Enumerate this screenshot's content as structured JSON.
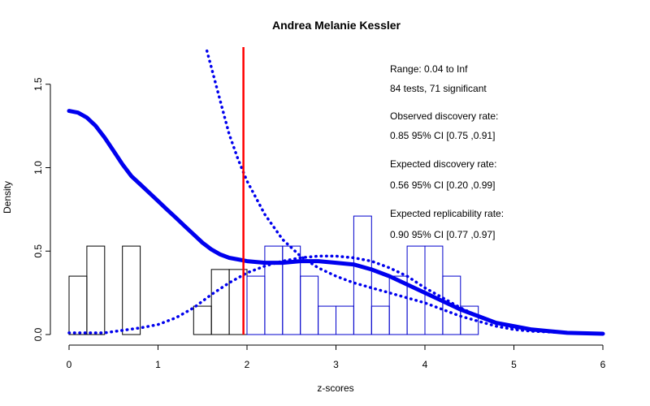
{
  "chart_data": {
    "type": "histogram",
    "title": "Andrea Melanie Kessler",
    "xlabel": "z-scores",
    "ylabel": "Density",
    "xlim": [
      0,
      6
    ],
    "ylim": [
      0,
      1.6
    ],
    "x_ticks": [
      "0",
      "1",
      "2",
      "3",
      "4",
      "5",
      "6"
    ],
    "y_ticks": [
      "0.0",
      "0.5",
      "1.0",
      "1.5"
    ],
    "grid": false,
    "bin_width": 0.2,
    "bins": [
      {
        "x0": 0.0,
        "height": 0.35
      },
      {
        "x0": 0.2,
        "height": 0.53
      },
      {
        "x0": 0.4,
        "height": 0.0
      },
      {
        "x0": 0.6,
        "height": 0.53
      },
      {
        "x0": 0.8,
        "height": 0.0
      },
      {
        "x0": 1.0,
        "height": 0.0
      },
      {
        "x0": 1.2,
        "height": 0.0
      },
      {
        "x0": 1.4,
        "height": 0.17
      },
      {
        "x0": 1.6,
        "height": 0.39
      },
      {
        "x0": 1.8,
        "height": 0.39
      },
      {
        "x0": 2.0,
        "height": 0.35
      },
      {
        "x0": 2.2,
        "height": 0.53
      },
      {
        "x0": 2.4,
        "height": 0.53
      },
      {
        "x0": 2.6,
        "height": 0.35
      },
      {
        "x0": 2.8,
        "height": 0.17
      },
      {
        "x0": 3.0,
        "height": 0.17
      },
      {
        "x0": 3.2,
        "height": 0.71
      },
      {
        "x0": 3.4,
        "height": 0.17
      },
      {
        "x0": 3.6,
        "height": 0.35
      },
      {
        "x0": 3.8,
        "height": 0.53
      },
      {
        "x0": 4.0,
        "height": 0.53
      },
      {
        "x0": 4.2,
        "height": 0.35
      },
      {
        "x0": 4.4,
        "height": 0.17
      }
    ],
    "significance_line": {
      "x": 1.96,
      "color": "#ff0000"
    },
    "curves": [
      {
        "style": "solid",
        "color": "#0000ee",
        "points": [
          [
            0,
            1.34
          ],
          [
            0.1,
            1.33
          ],
          [
            0.2,
            1.3
          ],
          [
            0.3,
            1.25
          ],
          [
            0.4,
            1.18
          ],
          [
            0.5,
            1.1
          ],
          [
            0.6,
            1.02
          ],
          [
            0.7,
            0.95
          ],
          [
            0.8,
            0.9
          ],
          [
            0.9,
            0.85
          ],
          [
            1.0,
            0.8
          ],
          [
            1.1,
            0.75
          ],
          [
            1.2,
            0.7
          ],
          [
            1.3,
            0.65
          ],
          [
            1.4,
            0.6
          ],
          [
            1.5,
            0.55
          ],
          [
            1.6,
            0.51
          ],
          [
            1.7,
            0.48
          ],
          [
            1.8,
            0.46
          ],
          [
            1.9,
            0.45
          ],
          [
            2.0,
            0.44
          ],
          [
            2.2,
            0.43
          ],
          [
            2.4,
            0.43
          ],
          [
            2.6,
            0.44
          ],
          [
            2.8,
            0.44
          ],
          [
            3.0,
            0.43
          ],
          [
            3.2,
            0.42
          ],
          [
            3.4,
            0.39
          ],
          [
            3.6,
            0.35
          ],
          [
            3.8,
            0.3
          ],
          [
            4.0,
            0.25
          ],
          [
            4.2,
            0.2
          ],
          [
            4.4,
            0.15
          ],
          [
            4.6,
            0.11
          ],
          [
            4.8,
            0.07
          ],
          [
            5.0,
            0.05
          ],
          [
            5.2,
            0.03
          ],
          [
            5.4,
            0.02
          ],
          [
            5.6,
            0.01
          ],
          [
            6.0,
            0.005
          ]
        ]
      },
      {
        "style": "dotted",
        "color": "#0000ee",
        "points": [
          [
            1.55,
            1.7
          ],
          [
            1.6,
            1.6
          ],
          [
            1.7,
            1.4
          ],
          [
            1.8,
            1.2
          ],
          [
            1.9,
            1.05
          ],
          [
            2.0,
            0.92
          ],
          [
            2.2,
            0.72
          ],
          [
            2.4,
            0.57
          ],
          [
            2.6,
            0.47
          ],
          [
            2.8,
            0.4
          ],
          [
            3.0,
            0.35
          ],
          [
            3.2,
            0.31
          ],
          [
            3.4,
            0.28
          ],
          [
            3.6,
            0.25
          ],
          [
            3.8,
            0.22
          ],
          [
            4.0,
            0.19
          ],
          [
            4.2,
            0.15
          ],
          [
            4.4,
            0.11
          ],
          [
            4.6,
            0.08
          ],
          [
            4.8,
            0.05
          ],
          [
            5.0,
            0.03
          ],
          [
            5.2,
            0.02
          ],
          [
            5.6,
            0.01
          ],
          [
            6.0,
            0.005
          ]
        ]
      },
      {
        "style": "dotted",
        "color": "#0000ee",
        "points": [
          [
            0,
            0.01
          ],
          [
            0.4,
            0.01
          ],
          [
            0.8,
            0.04
          ],
          [
            1.0,
            0.06
          ],
          [
            1.2,
            0.1
          ],
          [
            1.4,
            0.16
          ],
          [
            1.6,
            0.24
          ],
          [
            1.8,
            0.31
          ],
          [
            2.0,
            0.37
          ],
          [
            2.2,
            0.41
          ],
          [
            2.4,
            0.44
          ],
          [
            2.6,
            0.46
          ],
          [
            2.8,
            0.47
          ],
          [
            3.0,
            0.47
          ],
          [
            3.2,
            0.46
          ],
          [
            3.4,
            0.44
          ],
          [
            3.6,
            0.4
          ],
          [
            3.8,
            0.35
          ],
          [
            4.0,
            0.28
          ],
          [
            4.2,
            0.22
          ],
          [
            4.4,
            0.16
          ],
          [
            4.6,
            0.11
          ],
          [
            4.8,
            0.07
          ],
          [
            5.0,
            0.04
          ],
          [
            5.2,
            0.03
          ],
          [
            5.4,
            0.02
          ],
          [
            5.6,
            0.01
          ],
          [
            6.0,
            0.005
          ]
        ]
      }
    ],
    "annotations": [
      "Range: 0.04 to Inf",
      "84 tests, 71 significant",
      "Observed discovery rate:",
      "0.85  95% CI [0.75 ,0.91]",
      "Expected discovery rate:",
      "0.56  95% CI [0.20 ,0.99]",
      "Expected replicability rate:",
      "0.90  95% CI [0.77 ,0.97]"
    ],
    "colors": {
      "bar_below_sig": "#000000",
      "bar_above_sig": "#0000cc",
      "sig_line": "#ff0000",
      "curve": "#0000ee"
    }
  }
}
